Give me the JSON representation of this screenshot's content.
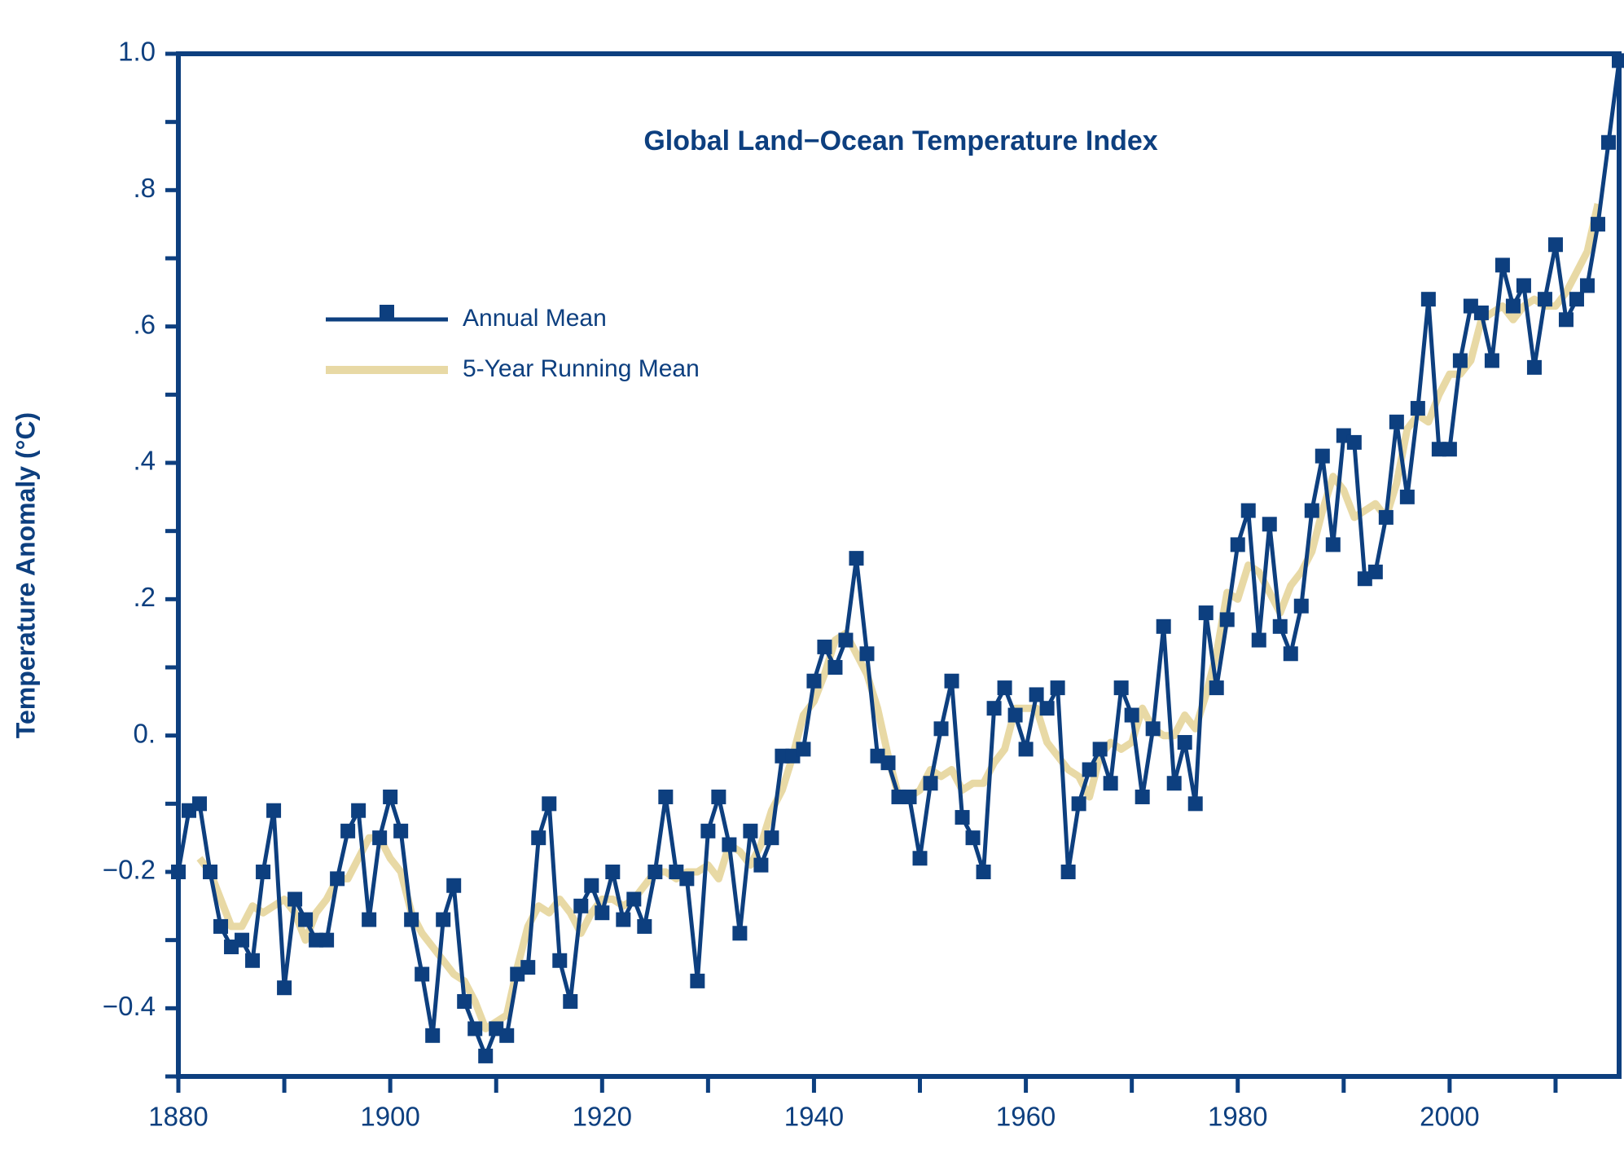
{
  "chart_data": {
    "type": "line",
    "title": "Global Land−Ocean Temperature Index",
    "y_label": "Temperature Anomaly (°C)",
    "legend": "upper left",
    "x": [
      1880,
      1881,
      1882,
      1883,
      1884,
      1885,
      1886,
      1887,
      1888,
      1889,
      1890,
      1891,
      1892,
      1893,
      1894,
      1895,
      1896,
      1897,
      1898,
      1899,
      1900,
      1901,
      1902,
      1903,
      1904,
      1905,
      1906,
      1907,
      1908,
      1909,
      1910,
      1911,
      1912,
      1913,
      1914,
      1915,
      1916,
      1917,
      1918,
      1919,
      1920,
      1921,
      1922,
      1923,
      1924,
      1925,
      1926,
      1927,
      1928,
      1929,
      1930,
      1931,
      1932,
      1933,
      1934,
      1935,
      1936,
      1937,
      1938,
      1939,
      1940,
      1941,
      1942,
      1943,
      1944,
      1945,
      1946,
      1947,
      1948,
      1949,
      1950,
      1951,
      1952,
      1953,
      1954,
      1955,
      1956,
      1957,
      1958,
      1959,
      1960,
      1961,
      1962,
      1963,
      1964,
      1965,
      1966,
      1967,
      1968,
      1969,
      1970,
      1971,
      1972,
      1973,
      1974,
      1975,
      1976,
      1977,
      1978,
      1979,
      1980,
      1981,
      1982,
      1983,
      1984,
      1985,
      1986,
      1987,
      1988,
      1989,
      1990,
      1991,
      1992,
      1993,
      1994,
      1995,
      1996,
      1997,
      1998,
      1999,
      2000,
      2001,
      2002,
      2003,
      2004,
      2005,
      2006,
      2007,
      2008,
      2009,
      2010,
      2011,
      2012,
      2013,
      2014,
      2015,
      2016
    ],
    "series": [
      {
        "name": "Annual Mean",
        "color": "#0d3f7f",
        "marker": "square",
        "values": [
          -0.2,
          -0.11,
          -0.1,
          -0.2,
          -0.28,
          -0.31,
          -0.3,
          -0.33,
          -0.2,
          -0.11,
          -0.37,
          -0.24,
          -0.27,
          -0.3,
          -0.3,
          -0.21,
          -0.14,
          -0.11,
          -0.27,
          -0.15,
          -0.09,
          -0.14,
          -0.27,
          -0.35,
          -0.44,
          -0.27,
          -0.22,
          -0.39,
          -0.43,
          -0.47,
          -0.43,
          -0.44,
          -0.35,
          -0.34,
          -0.15,
          -0.1,
          -0.33,
          -0.39,
          -0.25,
          -0.22,
          -0.26,
          -0.2,
          -0.27,
          -0.24,
          -0.28,
          -0.2,
          -0.09,
          -0.2,
          -0.21,
          -0.36,
          -0.14,
          -0.09,
          -0.16,
          -0.29,
          -0.14,
          -0.19,
          -0.15,
          -0.03,
          -0.03,
          -0.02,
          0.08,
          0.13,
          0.1,
          0.14,
          0.26,
          0.12,
          -0.03,
          -0.04,
          -0.09,
          -0.09,
          -0.18,
          -0.07,
          0.01,
          0.08,
          -0.12,
          -0.15,
          -0.2,
          0.04,
          0.07,
          0.03,
          -0.02,
          0.06,
          0.04,
          0.07,
          -0.2,
          -0.1,
          -0.05,
          -0.02,
          -0.07,
          0.07,
          0.03,
          -0.09,
          0.01,
          0.16,
          -0.07,
          -0.01,
          -0.1,
          0.18,
          0.07,
          0.17,
          0.28,
          0.33,
          0.14,
          0.31,
          0.16,
          0.12,
          0.19,
          0.33,
          0.41,
          0.28,
          0.44,
          0.43,
          0.23,
          0.24,
          0.32,
          0.46,
          0.35,
          0.48,
          0.64,
          0.42,
          0.42,
          0.55,
          0.63,
          0.62,
          0.55,
          0.69,
          0.63,
          0.66,
          0.54,
          0.64,
          0.72,
          0.61,
          0.64,
          0.66,
          0.75,
          0.87,
          0.99
        ]
      },
      {
        "name": "5-Year Running Mean",
        "color": "#e8d9a5",
        "values": [
          null,
          null,
          -0.18,
          -0.2,
          -0.24,
          -0.28,
          -0.28,
          -0.25,
          -0.26,
          -0.25,
          -0.24,
          -0.26,
          -0.3,
          -0.26,
          -0.24,
          -0.21,
          -0.21,
          -0.18,
          -0.15,
          -0.15,
          -0.18,
          -0.2,
          -0.26,
          -0.29,
          -0.31,
          -0.33,
          -0.35,
          -0.36,
          -0.39,
          -0.43,
          -0.42,
          -0.41,
          -0.34,
          -0.28,
          -0.25,
          -0.26,
          -0.24,
          -0.26,
          -0.29,
          -0.26,
          -0.24,
          -0.24,
          -0.25,
          -0.24,
          -0.22,
          -0.2,
          -0.2,
          -0.21,
          -0.2,
          -0.2,
          -0.19,
          -0.21,
          -0.16,
          -0.17,
          -0.19,
          -0.16,
          -0.11,
          -0.08,
          -0.03,
          0.03,
          0.05,
          0.09,
          0.14,
          0.15,
          0.12,
          0.09,
          0.04,
          -0.03,
          -0.09,
          -0.09,
          -0.08,
          -0.05,
          -0.06,
          -0.05,
          -0.08,
          -0.07,
          -0.07,
          -0.04,
          -0.02,
          0.04,
          0.04,
          0.04,
          -0.01,
          -0.03,
          -0.05,
          -0.06,
          -0.09,
          -0.03,
          -0.01,
          -0.02,
          -0.01,
          0.04,
          0.01,
          0.0,
          0.0,
          0.03,
          0.01,
          0.06,
          0.12,
          0.21,
          0.2,
          0.25,
          0.24,
          0.21,
          0.18,
          0.22,
          0.24,
          0.27,
          0.33,
          0.38,
          0.36,
          0.32,
          0.33,
          0.34,
          0.32,
          0.37,
          0.45,
          0.47,
          0.46,
          0.5,
          0.53,
          0.53,
          0.55,
          0.61,
          0.62,
          0.63,
          0.61,
          0.63,
          0.64,
          0.63,
          0.63,
          0.65,
          0.68,
          0.71,
          0.78,
          null,
          null
        ]
      }
    ],
    "xlim": [
      1880,
      2016
    ],
    "xticks": [
      1880,
      1900,
      1920,
      1940,
      1960,
      1980,
      2000
    ],
    "xminorticks": [
      1890,
      1910,
      1930,
      1950,
      1970,
      1990,
      2010
    ],
    "ylim": [
      -0.5,
      1.0
    ],
    "yticks": [
      {
        "value": -0.4,
        "label": "−0.4"
      },
      {
        "value": -0.2,
        "label": "−0.2"
      },
      {
        "value": 0,
        "label": "0."
      },
      {
        "value": 0.2,
        "label": ".2"
      },
      {
        "value": 0.4,
        "label": ".4"
      },
      {
        "value": 0.6,
        "label": ".6"
      },
      {
        "value": 0.8,
        "label": ".8"
      },
      {
        "value": 1.0,
        "label": "1.0"
      }
    ],
    "yminorticks": [
      -0.5,
      -0.3,
      -0.1,
      0.1,
      0.3,
      0.5,
      0.7,
      0.9
    ]
  }
}
